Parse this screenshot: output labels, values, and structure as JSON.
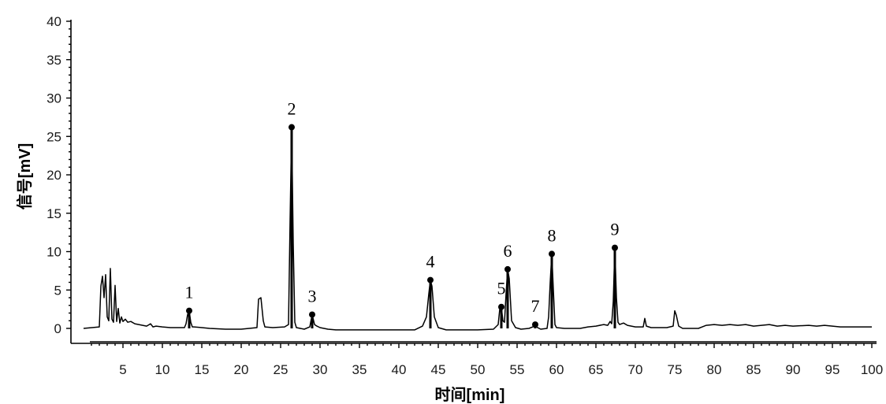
{
  "chart_data": {
    "type": "line",
    "title": "",
    "xlabel": "时间[min]",
    "ylabel": "信号[mV]",
    "xlim": [
      0,
      100
    ],
    "ylim": [
      0,
      40
    ],
    "x_ticks": [
      5,
      10,
      15,
      20,
      25,
      30,
      35,
      40,
      45,
      50,
      55,
      60,
      65,
      70,
      75,
      80,
      85,
      90,
      95,
      100
    ],
    "y_ticks": [
      0,
      5,
      10,
      15,
      20,
      25,
      30,
      35,
      40
    ],
    "grid": false,
    "labeled_peaks": [
      {
        "label": "1",
        "x": 13.4,
        "y": 2.3
      },
      {
        "label": "2",
        "x": 26.4,
        "y": 26.2
      },
      {
        "label": "3",
        "x": 29.0,
        "y": 1.8
      },
      {
        "label": "4",
        "x": 44.0,
        "y": 6.3
      },
      {
        "label": "5",
        "x": 53.0,
        "y": 2.8
      },
      {
        "label": "6",
        "x": 53.8,
        "y": 7.7
      },
      {
        "label": "7",
        "x": 57.3,
        "y": 0.5
      },
      {
        "label": "8",
        "x": 59.4,
        "y": 9.7
      },
      {
        "label": "9",
        "x": 67.4,
        "y": 10.5
      }
    ],
    "series": [
      {
        "x": [
          0,
          2.0,
          2.2,
          2.4,
          2.6,
          2.8,
          3.0,
          3.2,
          3.4,
          3.6,
          3.8,
          4.0,
          4.2,
          4.4,
          4.6,
          4.8,
          5.0,
          5.3,
          5.6,
          6.0,
          6.5,
          7.0,
          8.0,
          8.5,
          8.8,
          9.2,
          10.0,
          11.0,
          12.0,
          12.8,
          13.0,
          13.2,
          13.4,
          13.6,
          13.8,
          14.0,
          15.0,
          16.0,
          18.0,
          20.0,
          22.0,
          22.2,
          22.5,
          22.8,
          23.0,
          24.0,
          25.5,
          26.0,
          26.2,
          26.4,
          26.6,
          26.8,
          27.0,
          28.0,
          28.7,
          29.0,
          29.3,
          29.6,
          30.0,
          31.0,
          32.0,
          35.0,
          38.0,
          40.0,
          42.0,
          43.0,
          43.5,
          43.8,
          44.0,
          44.2,
          44.5,
          45.0,
          46.0,
          48.0,
          50.0,
          52.0,
          52.6,
          52.8,
          53.0,
          53.2,
          53.4,
          53.6,
          53.8,
          54.0,
          54.3,
          54.8,
          55.5,
          56.5,
          57.0,
          57.3,
          57.6,
          58.0,
          58.8,
          59.0,
          59.2,
          59.4,
          59.6,
          59.8,
          60.0,
          61.0,
          62.0,
          63.0,
          64.0,
          65.0,
          66.0,
          66.5,
          66.8,
          67.0,
          67.2,
          67.4,
          67.6,
          67.8,
          68.0,
          68.5,
          69.0,
          70.0,
          71.0,
          71.2,
          71.4,
          72.0,
          74.0,
          74.8,
          75.0,
          75.2,
          75.5,
          76.0,
          77.0,
          78.0,
          79.0,
          80.0,
          81.0,
          82.0,
          83.0,
          84.0,
          85.0,
          86.0,
          87.0,
          88.0,
          89.0,
          90.0,
          92.0,
          93.0,
          94.0,
          95.0,
          96.0,
          97.0,
          98.0,
          100.0
        ],
        "y": [
          0,
          0.2,
          5.5,
          6.8,
          4.0,
          7.0,
          1.5,
          1.0,
          7.8,
          1.2,
          0.8,
          5.6,
          0.9,
          2.6,
          0.7,
          1.5,
          0.9,
          1.2,
          0.8,
          0.9,
          0.6,
          0.5,
          0.3,
          0.6,
          0.2,
          0.3,
          0.2,
          0.1,
          0.1,
          0.1,
          0.6,
          1.8,
          2.3,
          0.8,
          0.2,
          0.2,
          0.1,
          0.0,
          -0.1,
          -0.1,
          0.1,
          3.8,
          4.0,
          1.0,
          0.2,
          0.1,
          0.2,
          0.5,
          14.0,
          26.2,
          11.0,
          0.8,
          0.1,
          -0.1,
          0.2,
          1.8,
          0.5,
          0.3,
          0.1,
          -0.1,
          -0.2,
          -0.2,
          -0.2,
          -0.2,
          -0.2,
          0.3,
          1.5,
          4.5,
          6.3,
          5.5,
          1.5,
          0.1,
          -0.2,
          -0.2,
          -0.2,
          -0.1,
          0.5,
          2.5,
          2.8,
          1.0,
          0.8,
          4.5,
          7.7,
          6.5,
          1.0,
          0.1,
          -0.1,
          0.0,
          0.2,
          0.5,
          0.1,
          -0.1,
          0.0,
          1.5,
          6.0,
          9.7,
          5.0,
          0.5,
          0.1,
          0.0,
          0.0,
          0.0,
          0.2,
          0.3,
          0.5,
          0.4,
          0.9,
          0.6,
          3.5,
          10.5,
          4.0,
          0.8,
          0.5,
          0.7,
          0.4,
          0.2,
          0.2,
          1.3,
          0.3,
          0.1,
          0.1,
          0.3,
          2.3,
          1.7,
          0.3,
          0.0,
          0.0,
          0.0,
          0.4,
          0.5,
          0.4,
          0.5,
          0.4,
          0.5,
          0.3,
          0.4,
          0.5,
          0.3,
          0.4,
          0.3,
          0.4,
          0.3,
          0.4,
          0.3,
          0.2,
          0.2,
          0.2,
          0.2
        ]
      }
    ]
  }
}
